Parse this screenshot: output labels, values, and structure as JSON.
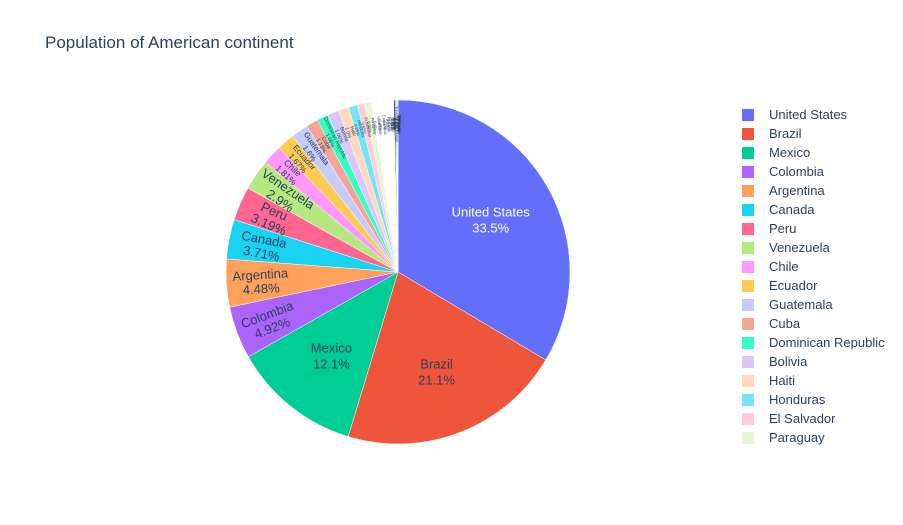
{
  "chart_data": {
    "type": "pie",
    "title": "Population of American continent",
    "slices": [
      {
        "label": "United States",
        "percent": 33.5,
        "color": "#636efa",
        "text": "33.5%"
      },
      {
        "label": "Brazil",
        "percent": 21.1,
        "color": "#EF553B",
        "text": "21.1%"
      },
      {
        "label": "Mexico",
        "percent": 12.1,
        "color": "#00cc96",
        "text": "12.1%"
      },
      {
        "label": "Colombia",
        "percent": 4.92,
        "color": "#ab63fa",
        "text": "4.92%"
      },
      {
        "label": "Argentina",
        "percent": 4.48,
        "color": "#FFA15A",
        "text": "4.48%"
      },
      {
        "label": "Canada",
        "percent": 3.71,
        "color": "#19d3f3",
        "text": "3.71%"
      },
      {
        "label": "Peru",
        "percent": 3.19,
        "color": "#FF6692",
        "text": "3.19%"
      },
      {
        "label": "Venezuela",
        "percent": 2.9,
        "color": "#B6E880",
        "text": "2.9%"
      },
      {
        "label": "Chile",
        "percent": 1.81,
        "color": "#FF97FF",
        "text": "1.81%"
      },
      {
        "label": "Ecuador",
        "percent": 1.67,
        "color": "#FECB52",
        "text": "1.67%"
      },
      {
        "label": "Guatemala",
        "percent": 1.6,
        "color": "#c6cbfa",
        "text": "1.6%"
      },
      {
        "label": "Cuba",
        "percent": 1.13,
        "color": "#f3a698",
        "text": "1.13%"
      },
      {
        "label": "Dominican Republic",
        "percent": 1.06,
        "color": "#33ffc2",
        "text": "1.06%"
      },
      {
        "label": "Bolivia",
        "percent": 1.06,
        "color": "#dbc6fb",
        "text": "1.06%"
      },
      {
        "label": "Haiti",
        "percent": 1.0,
        "color": "#ffd9bd",
        "text": "1.0%"
      },
      {
        "label": "Honduras",
        "percent": 0.85,
        "color": "#76e4f6",
        "text": "0.85%"
      },
      {
        "label": "El Salvador",
        "percent": 0.65,
        "color": "#ffccda",
        "text": "0.65%"
      },
      {
        "label": "Paraguay",
        "percent": 0.65,
        "color": "#e6f5d5",
        "text": "0.65%"
      },
      {
        "label": "Nicaragua",
        "percent": 0.6,
        "color": "#ffffff",
        "text": "0.6%"
      },
      {
        "label": "Costa Rica",
        "percent": 0.48,
        "color": "#ffffff",
        "text": "0.48%"
      },
      {
        "label": "Panama",
        "percent": 0.4,
        "color": "#ffffff",
        "text": "0.4%"
      },
      {
        "label": "Uruguay",
        "percent": 0.33,
        "color": "#ffffff",
        "text": "0.33%"
      },
      {
        "label": "Jamaica",
        "percent": 0.27,
        "color": "#ffffff",
        "text": "0.27%"
      },
      {
        "label": "Trinidad and Tobago",
        "percent": 0.13,
        "color": "#1a237e",
        "text": "0.13%"
      },
      {
        "label": "Guyana",
        "percent": 0.08,
        "color": "#b71c1c",
        "text": "0.08%"
      },
      {
        "label": "Suriname",
        "percent": 0.06,
        "color": "#1b5e20",
        "text": "0.06%"
      },
      {
        "label": "Belize",
        "percent": 0.04,
        "color": "#4a148c",
        "text": "0.04%"
      },
      {
        "label": "Bahamas",
        "percent": 0.04,
        "color": "#e65100",
        "text": "0.04%"
      },
      {
        "label": "Barbados",
        "percent": 0.03,
        "color": "#006064",
        "text": "0.03%"
      },
      {
        "label": "Saint Lucia",
        "percent": 0.02,
        "color": "#880e4f",
        "text": "0.02%"
      }
    ],
    "legend_items_shown": 18,
    "legend_position": "right"
  }
}
